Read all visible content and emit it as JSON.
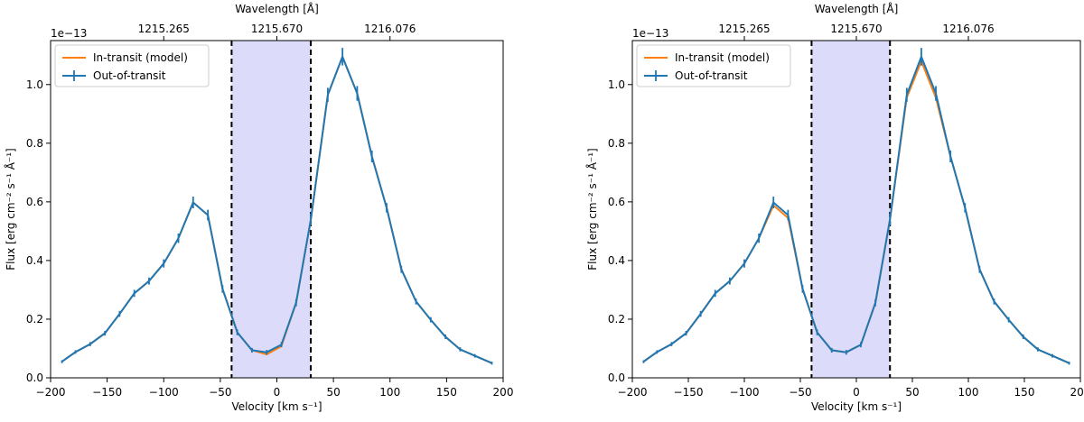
{
  "colors": {
    "out_of_transit": "#1f77b4",
    "in_transit_model": "#ff7f0e",
    "shaded_band": "#dcdcfa",
    "vline": "#000000"
  },
  "chart_data": [
    {
      "type": "line",
      "xlabel": "Velocity [km s⁻¹]",
      "ylabel": "Flux [erg cm⁻² s⁻¹ Å⁻¹]",
      "top_xlabel": "Wavelength [Å]",
      "offset_label": "1e−13",
      "xlim": [
        -200,
        200
      ],
      "ylim": [
        0,
        1.15
      ],
      "xticks": [
        "−200",
        "−150",
        "−100",
        "−50",
        "0",
        "50",
        "100",
        "150",
        "200"
      ],
      "yticks": [
        "0.0",
        "0.2",
        "0.4",
        "0.6",
        "0.8",
        "1.0"
      ],
      "top_ticks": [
        {
          "label": "1215.265",
          "velocity": -100
        },
        {
          "label": "1215.670",
          "velocity": 0
        },
        {
          "label": "1216.076",
          "velocity": 100
        }
      ],
      "shaded_region": [
        -40,
        30
      ],
      "vlines": [
        -40,
        30
      ],
      "legend": {
        "placement": "top-left",
        "entries": [
          "In-transit (model)",
          "Out-of-transit"
        ]
      },
      "x": [
        -190,
        -178,
        -165,
        -152,
        -139,
        -126,
        -113,
        -100,
        -87,
        -74,
        -61,
        -48,
        -35,
        -22,
        -9,
        4,
        17,
        30,
        45,
        58,
        71,
        84,
        97,
        110,
        123,
        136,
        149,
        162,
        175,
        190
      ],
      "series": [
        {
          "name": "Out-of-transit",
          "values": [
            0.055,
            0.088,
            0.115,
            0.152,
            0.218,
            0.288,
            0.33,
            0.39,
            0.476,
            0.598,
            0.555,
            0.303,
            0.155,
            0.094,
            0.087,
            0.113,
            0.256,
            0.54,
            0.965,
            1.095,
            0.97,
            0.755,
            0.58,
            0.37,
            0.26,
            0.198,
            0.14,
            0.097,
            0.075,
            0.05
          ],
          "errors": [
            0.005,
            0.006,
            0.007,
            0.008,
            0.01,
            0.012,
            0.012,
            0.014,
            0.016,
            0.02,
            0.018,
            0.013,
            0.01,
            0.008,
            0.008,
            0.009,
            0.012,
            0.02,
            0.024,
            0.03,
            0.025,
            0.02,
            0.016,
            0.012,
            0.01,
            0.009,
            0.008,
            0.007,
            0.006,
            0.005
          ]
        },
        {
          "name": "In-transit (model)",
          "values": [
            0.055,
            0.088,
            0.115,
            0.152,
            0.218,
            0.288,
            0.33,
            0.39,
            0.476,
            0.598,
            0.555,
            0.303,
            0.155,
            0.094,
            0.08,
            0.108,
            0.256,
            0.54,
            0.965,
            1.095,
            0.97,
            0.755,
            0.58,
            0.37,
            0.26,
            0.198,
            0.14,
            0.097,
            0.075,
            0.05
          ]
        }
      ]
    },
    {
      "type": "line",
      "xlabel": "Velocity [km s⁻¹]",
      "ylabel": "Flux [erg cm⁻² s⁻¹ Å⁻¹]",
      "top_xlabel": "Wavelength [Å]",
      "offset_label": "1e−13",
      "xlim": [
        -200,
        200
      ],
      "ylim": [
        0,
        1.15
      ],
      "xticks": [
        "−200",
        "−150",
        "−100",
        "−50",
        "0",
        "50",
        "100",
        "150",
        "200"
      ],
      "yticks": [
        "0.0",
        "0.2",
        "0.4",
        "0.6",
        "0.8",
        "1.0"
      ],
      "top_ticks": [
        {
          "label": "1215.265",
          "velocity": -100
        },
        {
          "label": "1215.670",
          "velocity": 0
        },
        {
          "label": "1216.076",
          "velocity": 100
        }
      ],
      "shaded_region": [
        -40,
        30
      ],
      "vlines": [
        -40,
        30
      ],
      "legend": {
        "placement": "top-left",
        "entries": [
          "In-transit (model)",
          "Out-of-transit"
        ]
      },
      "x": [
        -190,
        -178,
        -165,
        -152,
        -139,
        -126,
        -113,
        -100,
        -87,
        -74,
        -61,
        -48,
        -35,
        -22,
        -9,
        4,
        17,
        30,
        45,
        58,
        71,
        84,
        97,
        110,
        123,
        136,
        149,
        162,
        175,
        190
      ],
      "series": [
        {
          "name": "Out-of-transit",
          "values": [
            0.055,
            0.088,
            0.115,
            0.152,
            0.218,
            0.288,
            0.33,
            0.39,
            0.476,
            0.598,
            0.555,
            0.303,
            0.155,
            0.094,
            0.087,
            0.113,
            0.256,
            0.54,
            0.965,
            1.095,
            0.97,
            0.755,
            0.58,
            0.37,
            0.26,
            0.198,
            0.14,
            0.097,
            0.075,
            0.05
          ],
          "errors": [
            0.005,
            0.006,
            0.007,
            0.008,
            0.01,
            0.012,
            0.012,
            0.014,
            0.016,
            0.02,
            0.018,
            0.013,
            0.01,
            0.008,
            0.008,
            0.009,
            0.012,
            0.02,
            0.024,
            0.03,
            0.025,
            0.02,
            0.016,
            0.012,
            0.01,
            0.009,
            0.008,
            0.007,
            0.006,
            0.005
          ]
        },
        {
          "name": "In-transit (model)",
          "values": [
            0.055,
            0.088,
            0.115,
            0.152,
            0.218,
            0.288,
            0.33,
            0.39,
            0.476,
            0.588,
            0.545,
            0.303,
            0.155,
            0.094,
            0.087,
            0.113,
            0.256,
            0.54,
            0.955,
            1.08,
            0.955,
            0.755,
            0.58,
            0.37,
            0.26,
            0.198,
            0.14,
            0.097,
            0.075,
            0.05
          ]
        }
      ]
    }
  ]
}
